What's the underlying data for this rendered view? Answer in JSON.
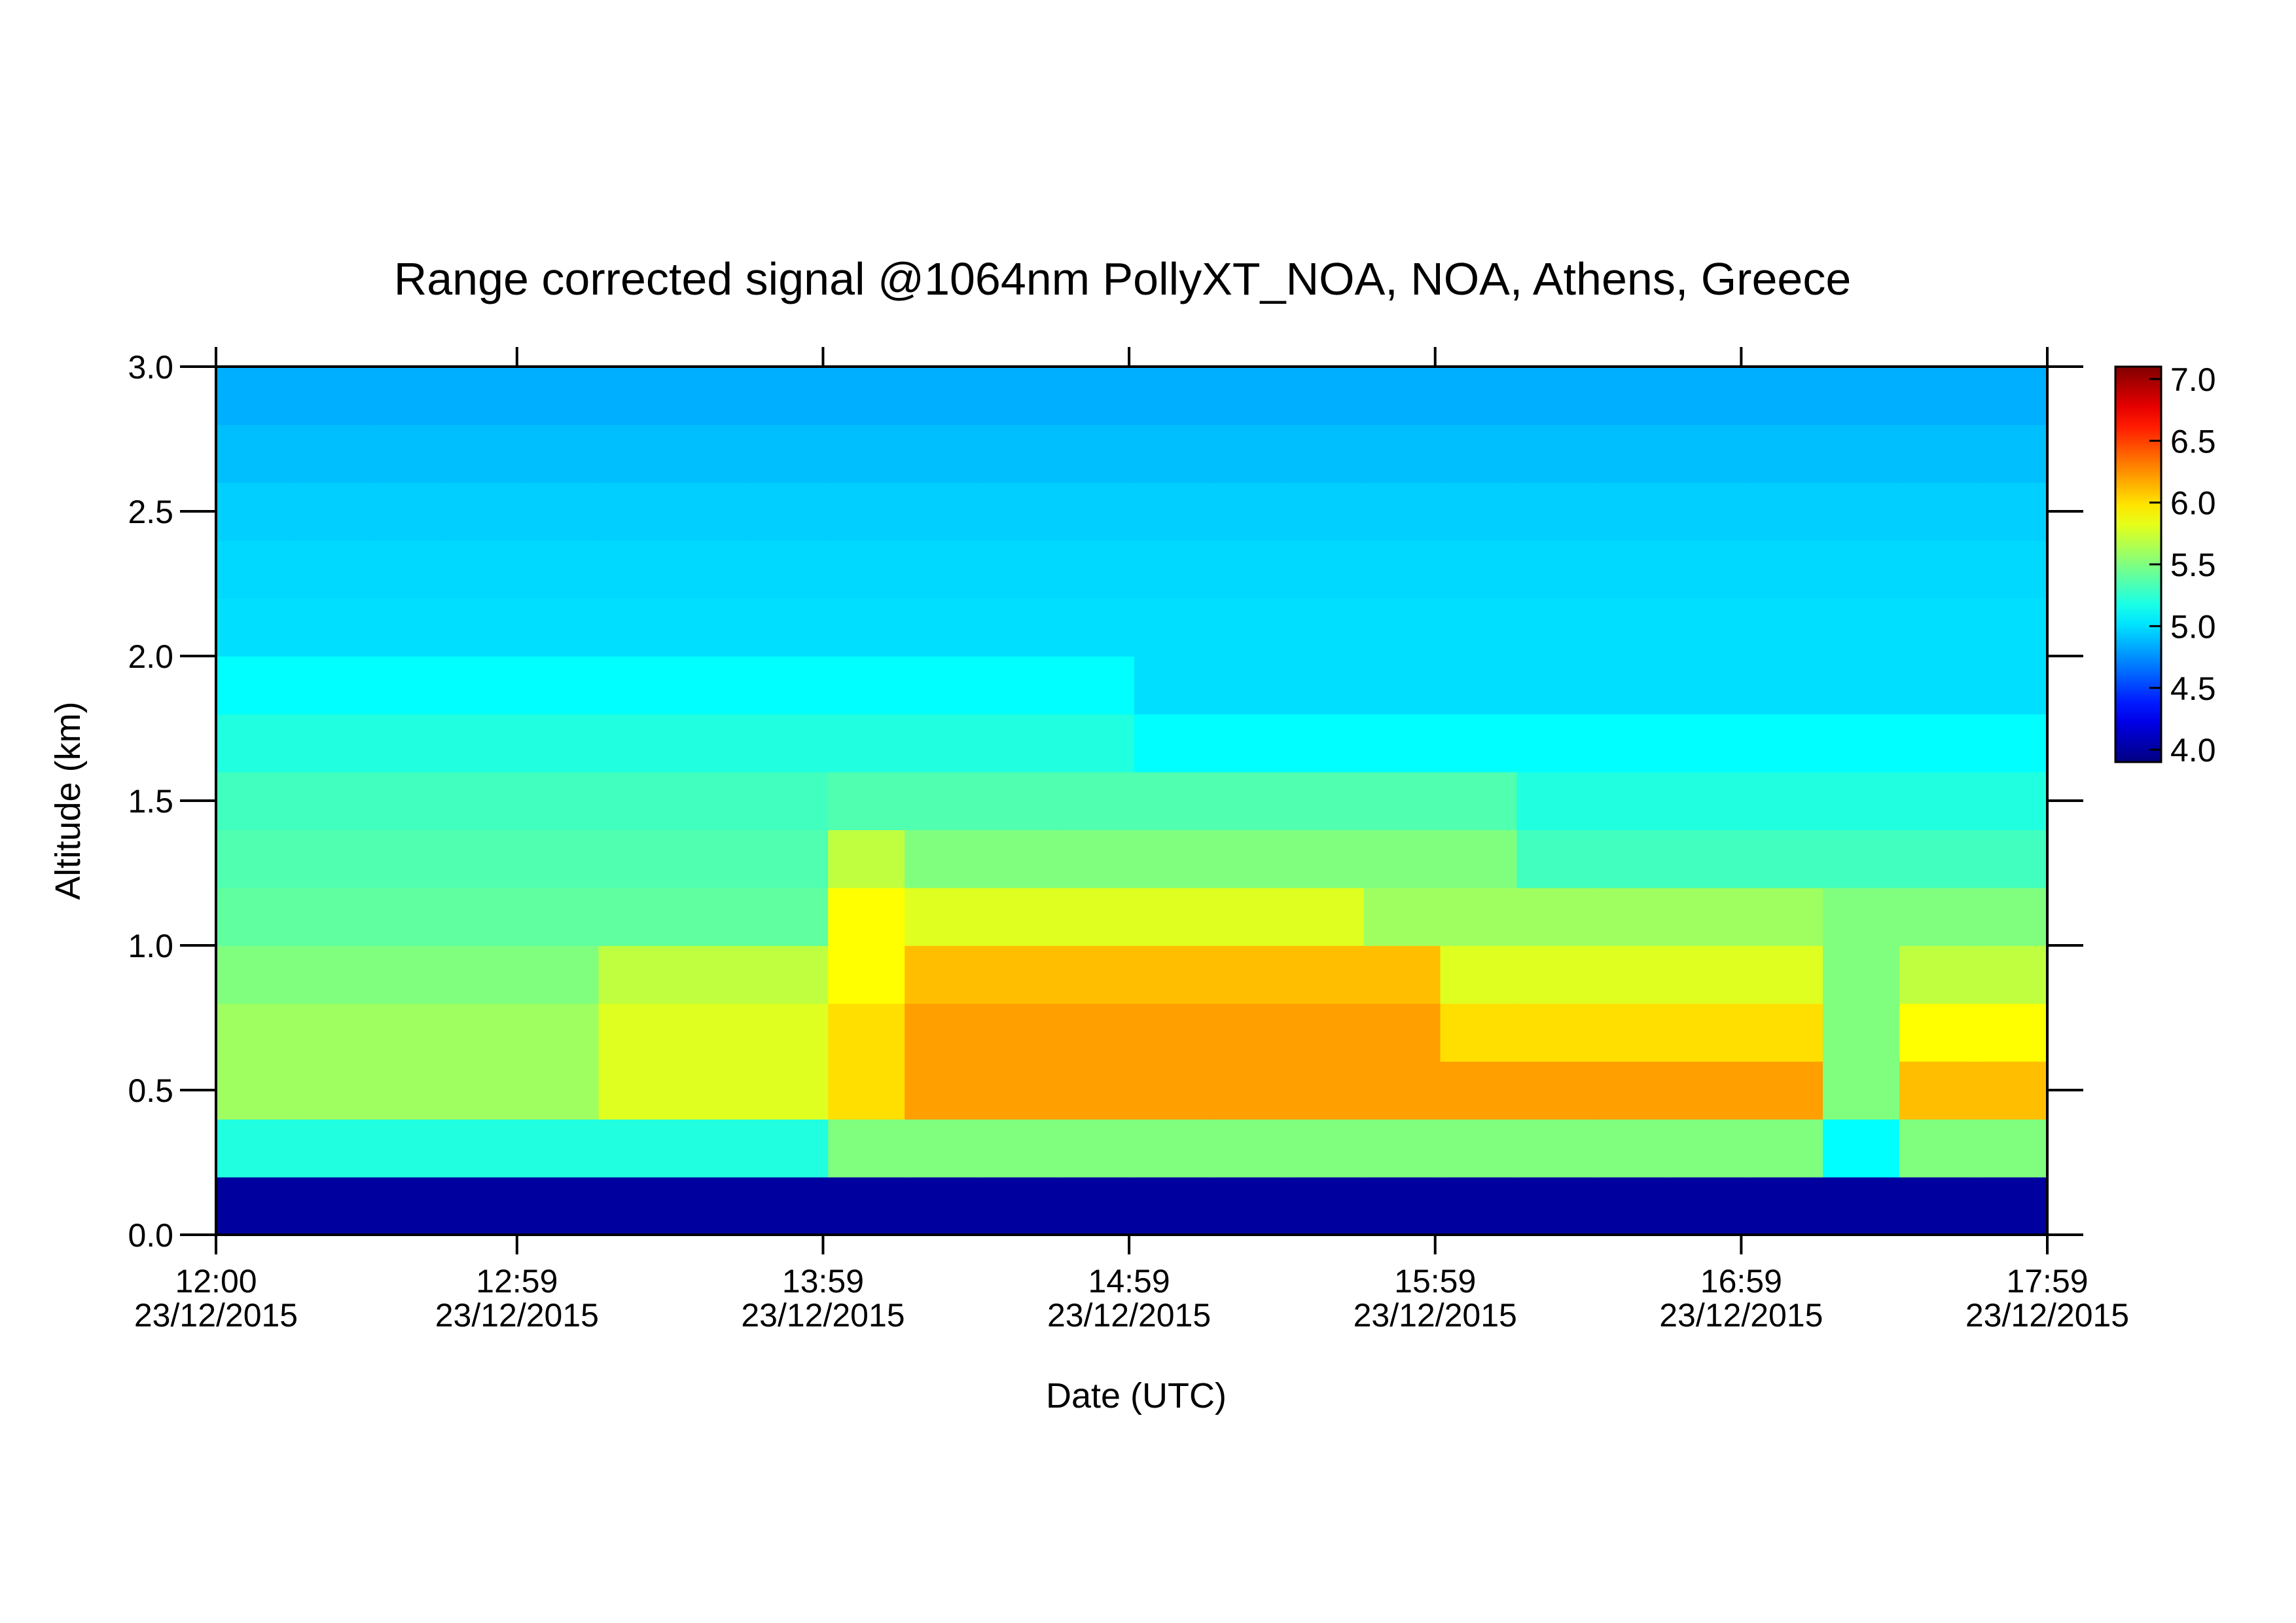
{
  "chart_data": {
    "type": "heatmap",
    "title": "Range corrected signal @1064nm  PollyXT_NOA, NOA, Athens, Greece",
    "xlabel": "Date (UTC)",
    "ylabel": "Altitude (km)",
    "xlim": [
      "2015-12-23T12:00",
      "2015-12-23T17:59"
    ],
    "xticks": [
      {
        "value": "2015-12-23T12:00",
        "label": [
          "12:00",
          "23/12/2015"
        ]
      },
      {
        "value": "2015-12-23T12:59",
        "label": [
          "12:59",
          "23/12/2015"
        ]
      },
      {
        "value": "2015-12-23T13:59",
        "label": [
          "13:59",
          "23/12/2015"
        ]
      },
      {
        "value": "2015-12-23T14:59",
        "label": [
          "14:59",
          "23/12/2015"
        ]
      },
      {
        "value": "2015-12-23T15:59",
        "label": [
          "15:59",
          "23/12/2015"
        ]
      },
      {
        "value": "2015-12-23T16:59",
        "label": [
          "16:59",
          "23/12/2015"
        ]
      },
      {
        "value": "2015-12-23T17:59",
        "label": [
          "17:59",
          "23/12/2015"
        ]
      }
    ],
    "ylim": [
      0,
      3
    ],
    "yticks": [
      {
        "value": 0,
        "label": "0.0"
      },
      {
        "value": 0.5,
        "label": "0.5"
      },
      {
        "value": 1,
        "label": "1.0"
      },
      {
        "value": 1.5,
        "label": "1.5"
      },
      {
        "value": 2,
        "label": "2.0"
      },
      {
        "value": 2.5,
        "label": "2.5"
      },
      {
        "value": 3,
        "label": "3.0"
      }
    ],
    "zlim": [
      3.9,
      7.1
    ],
    "zticks": [
      {
        "value": 4,
        "label": "4.0"
      },
      {
        "value": 4.5,
        "label": "4.5"
      },
      {
        "value": 5,
        "label": "5.0"
      },
      {
        "value": 5.5,
        "label": "5.5"
      },
      {
        "value": 6,
        "label": "6.0"
      },
      {
        "value": 6.5,
        "label": "6.5"
      },
      {
        "value": 7,
        "label": "7.0"
      }
    ],
    "colormap": "jet",
    "x": [
      "2015-12-23T12:00",
      "2015-12-23T12:15",
      "2015-12-23T12:30",
      "2015-12-23T12:45",
      "2015-12-23T13:00",
      "2015-12-23T13:15",
      "2015-12-23T13:30",
      "2015-12-23T13:45",
      "2015-12-23T14:00",
      "2015-12-23T14:15",
      "2015-12-23T14:30",
      "2015-12-23T14:45",
      "2015-12-23T15:00",
      "2015-12-23T15:15",
      "2015-12-23T15:30",
      "2015-12-23T15:45",
      "2015-12-23T16:00",
      "2015-12-23T16:15",
      "2015-12-23T16:30",
      "2015-12-23T16:45",
      "2015-12-23T17:00",
      "2015-12-23T17:15",
      "2015-12-23T17:30",
      "2015-12-23T17:45"
    ],
    "y": [
      0,
      0.2,
      0.4,
      0.6,
      0.8,
      1.0,
      1.2,
      1.4,
      1.6,
      1.8,
      2.0,
      2.2,
      2.4,
      2.6,
      2.8
    ],
    "z": [
      [
        4.0,
        4.0,
        4.0,
        4.0,
        4.0,
        4.0,
        4.0,
        4.0,
        4.0,
        4.0,
        4.0,
        4.0,
        4.0,
        4.0,
        4.0,
        4.0,
        4.0,
        4.0,
        4.0,
        4.0,
        4.0,
        4.0,
        4.0,
        4.0
      ],
      [
        5.2,
        5.2,
        5.2,
        5.2,
        5.2,
        5.2,
        5.2,
        5.2,
        5.5,
        5.5,
        5.5,
        5.5,
        5.5,
        5.5,
        5.5,
        5.5,
        5.5,
        5.5,
        5.5,
        5.5,
        5.5,
        5.1,
        5.5,
        5.5
      ],
      [
        5.6,
        5.6,
        5.6,
        5.6,
        5.6,
        5.8,
        5.8,
        5.8,
        6.0,
        6.2,
        6.2,
        6.2,
        6.2,
        6.2,
        6.2,
        6.2,
        6.2,
        6.2,
        6.2,
        6.2,
        6.2,
        5.5,
        6.1,
        6.1
      ],
      [
        5.6,
        5.6,
        5.6,
        5.6,
        5.6,
        5.8,
        5.8,
        5.8,
        6.0,
        6.2,
        6.2,
        6.2,
        6.2,
        6.2,
        6.2,
        6.2,
        6.0,
        6.0,
        6.0,
        6.0,
        6.0,
        5.5,
        5.9,
        5.9
      ],
      [
        5.5,
        5.5,
        5.5,
        5.5,
        5.5,
        5.7,
        5.7,
        5.7,
        5.9,
        6.1,
        6.1,
        6.1,
        6.1,
        6.1,
        6.1,
        6.1,
        5.8,
        5.8,
        5.8,
        5.8,
        5.8,
        5.5,
        5.7,
        5.7
      ],
      [
        5.4,
        5.4,
        5.4,
        5.4,
        5.4,
        5.4,
        5.4,
        5.4,
        5.9,
        5.8,
        5.8,
        5.8,
        5.8,
        5.8,
        5.8,
        5.6,
        5.6,
        5.6,
        5.6,
        5.6,
        5.6,
        5.5,
        5.5,
        5.5
      ],
      [
        5.35,
        5.35,
        5.35,
        5.35,
        5.35,
        5.35,
        5.35,
        5.35,
        5.7,
        5.5,
        5.5,
        5.5,
        5.5,
        5.5,
        5.5,
        5.5,
        5.5,
        5.3,
        5.3,
        5.3,
        5.3,
        5.3,
        5.3,
        5.3
      ],
      [
        5.3,
        5.3,
        5.3,
        5.3,
        5.3,
        5.3,
        5.3,
        5.3,
        5.35,
        5.35,
        5.35,
        5.35,
        5.35,
        5.35,
        5.35,
        5.35,
        5.35,
        5.2,
        5.2,
        5.2,
        5.2,
        5.2,
        5.2,
        5.2
      ],
      [
        5.2,
        5.2,
        5.2,
        5.2,
        5.2,
        5.2,
        5.2,
        5.2,
        5.2,
        5.2,
        5.2,
        5.2,
        5.1,
        5.1,
        5.1,
        5.1,
        5.1,
        5.1,
        5.1,
        5.1,
        5.1,
        5.1,
        5.1,
        5.1
      ],
      [
        5.1,
        5.1,
        5.1,
        5.1,
        5.1,
        5.1,
        5.1,
        5.1,
        5.1,
        5.1,
        5.1,
        5.1,
        5.0,
        5.0,
        5.0,
        5.0,
        5.0,
        5.0,
        5.0,
        5.0,
        5.0,
        5.0,
        5.0,
        5.0
      ],
      [
        5.0,
        5.0,
        5.0,
        5.0,
        5.0,
        5.0,
        5.0,
        5.0,
        5.0,
        5.0,
        5.0,
        5.0,
        5.0,
        5.0,
        5.0,
        5.0,
        5.0,
        5.0,
        5.0,
        5.0,
        5.0,
        5.0,
        5.0,
        5.0
      ],
      [
        4.98,
        4.98,
        4.98,
        4.98,
        4.98,
        4.98,
        4.98,
        4.98,
        4.98,
        4.98,
        4.98,
        4.98,
        4.98,
        4.98,
        4.98,
        4.98,
        4.98,
        4.98,
        4.98,
        4.98,
        4.98,
        4.98,
        4.98,
        4.98
      ],
      [
        4.95,
        4.95,
        4.95,
        4.95,
        4.95,
        4.95,
        4.95,
        4.95,
        4.95,
        4.95,
        4.95,
        4.95,
        4.95,
        4.95,
        4.95,
        4.95,
        4.95,
        4.95,
        4.95,
        4.95,
        4.95,
        4.95,
        4.95,
        4.95
      ],
      [
        4.9,
        4.9,
        4.9,
        4.9,
        4.9,
        4.9,
        4.9,
        4.9,
        4.9,
        4.9,
        4.9,
        4.9,
        4.9,
        4.9,
        4.9,
        4.9,
        4.9,
        4.9,
        4.9,
        4.9,
        4.9,
        4.9,
        4.9,
        4.9
      ],
      [
        4.85,
        4.85,
        4.85,
        4.85,
        4.85,
        4.85,
        4.85,
        4.85,
        4.85,
        4.85,
        4.85,
        4.85,
        4.85,
        4.85,
        4.85,
        4.85,
        4.85,
        4.85,
        4.85,
        4.85,
        4.85,
        4.85,
        4.85,
        4.85
      ]
    ]
  }
}
